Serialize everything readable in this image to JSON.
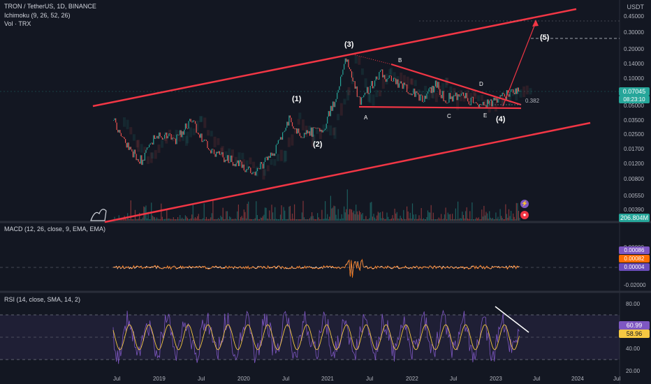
{
  "header": {
    "symbol_line": "TRON / TetherUS, 1D, BINANCE",
    "indicator_1": "Ichimoku (9, 26, 52, 26)",
    "indicator_2": "Vol · TRX"
  },
  "currency": "USDT",
  "price_axis": {
    "ticks": [
      "0.45000",
      "0.30000",
      "0.20000",
      "0.14000",
      "0.10000",
      "0.05000",
      "0.03500",
      "0.02500",
      "0.01700",
      "0.01200",
      "0.00800",
      "0.00550",
      "0.00390"
    ],
    "ticks_top": [
      "0.45000",
      "0.30000",
      "0.20000",
      "0.14000",
      "0.10000"
    ],
    "ticks_bottom": [
      "0.05000",
      "0.03500",
      "0.02500",
      "0.01700",
      "0.01200",
      "0.00800",
      "0.00550",
      "0.00390"
    ],
    "last_price": "0.07045",
    "countdown": "08:23:10",
    "volume_value": "206.804M"
  },
  "annotations": {
    "waves": [
      "(1)",
      "(2)",
      "(3)",
      "(4)",
      "(5)"
    ],
    "letters": [
      "A",
      "B",
      "C",
      "D",
      "E"
    ],
    "fib": "0.382"
  },
  "macd": {
    "label": "MACD (12, 26, close, 9, EMA, EMA)",
    "ticks": [
      "0.00000",
      "-0.02000"
    ],
    "values": [
      "0.00086",
      "0.00082",
      "0.00004"
    ],
    "colors": [
      "#7e57c2",
      "#ff6d00",
      "#6a4cba"
    ]
  },
  "rsi": {
    "label": "RSI (14, close, SMA, 14, 2)",
    "ticks": [
      "80.00",
      "40.00",
      "20.00"
    ],
    "value": "60.99",
    "ma_value": "58.96"
  },
  "time_axis": [
    "Jul",
    "2019",
    "Jul",
    "2020",
    "Jul",
    "2021",
    "Jul",
    "2022",
    "Jul",
    "2023",
    "Jul",
    "2024",
    "Jul"
  ],
  "colors": {
    "background": "#131722",
    "channel": "#f23645",
    "up": "#26a69a",
    "down": "#ef5350",
    "rsi_line": "#7e57c2",
    "rsi_ma": "#f5c842",
    "price_line": "#26a69a"
  },
  "chart_data": {
    "type": "line",
    "scale": "log",
    "series": [
      {
        "values": [
          {
            "t": "2018-07",
            "p": 0.035
          },
          {
            "t": "2018-09",
            "p": 0.018
          },
          {
            "t": "2018-11",
            "p": 0.013
          },
          {
            "t": "2019-01",
            "p": 0.024
          },
          {
            "t": "2019-04",
            "p": 0.022
          },
          {
            "t": "2019-06",
            "p": 0.035
          },
          {
            "t": "2019-09",
            "p": 0.016
          },
          {
            "t": "2019-12",
            "p": 0.013
          },
          {
            "t": "2020-03",
            "p": 0.0095
          },
          {
            "t": "2020-06",
            "p": 0.016
          },
          {
            "t": "2020-08",
            "p": 0.035
          },
          {
            "t": "2020-10",
            "p": 0.024
          },
          {
            "t": "2021-01",
            "p": 0.03
          },
          {
            "t": "2021-03",
            "p": 0.07
          },
          {
            "t": "2021-04",
            "p": 0.17
          },
          {
            "t": "2021-06",
            "p": 0.055
          },
          {
            "t": "2021-09",
            "p": 0.11
          },
          {
            "t": "2021-12",
            "p": 0.08
          },
          {
            "t": "2022-03",
            "p": 0.06
          },
          {
            "t": "2022-05",
            "p": 0.085
          },
          {
            "t": "2022-06",
            "p": 0.06
          },
          {
            "t": "2022-09",
            "p": 0.062
          },
          {
            "t": "2022-11",
            "p": 0.05
          },
          {
            "t": "2023-01",
            "p": 0.053
          },
          {
            "t": "2023-03",
            "p": 0.065
          },
          {
            "t": "2023-05",
            "p": 0.07045
          }
        ]
      }
    ]
  }
}
